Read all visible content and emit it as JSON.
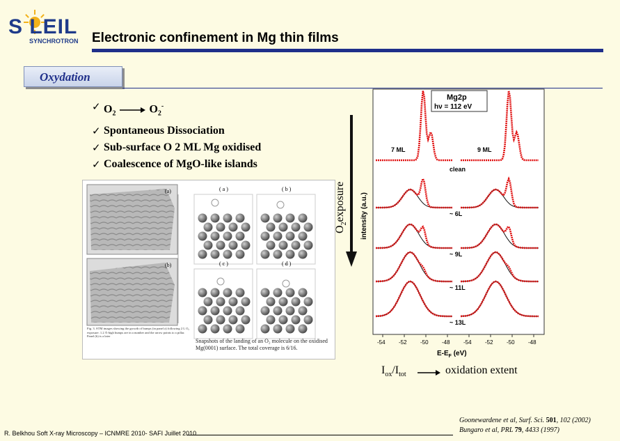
{
  "logo": {
    "word": "S LEIL",
    "sub": "SYNCHROTRON"
  },
  "title": "Electronic confinement in Mg thin films",
  "tab": "Oxydation",
  "bullets": {
    "b1_o2": "O",
    "b1_sub": "2",
    "b1_target": "O",
    "b1_target_sub": "2",
    "b1_target_sup": "-",
    "b2": "Spontaneous Dissociation",
    "b3": "Sub-surface O 2 ML Mg oxidised",
    "b4": "Coalescence of MgO-like islands"
  },
  "exposure_label": "O",
  "exposure_label_sub": "2",
  "exposure_label_rest": "exposure",
  "spectra": {
    "box_title": "Mg2p",
    "box_energy": "hν = 112 eV",
    "label_7ml": "7 ML",
    "label_9ml": "9 ML",
    "ylabel": "intensity (a.u.)",
    "xlabel": "E-E",
    "xlabel_sub": "F",
    "xlabel_unit": " (eV)",
    "ticks": [
      "-54",
      "-52",
      "-50",
      "-48",
      "-54",
      "-52",
      "-50",
      "-48"
    ],
    "exposures": [
      "clean",
      "~ 6L",
      "~ 9L",
      "~ 11L",
      "~ 13L"
    ]
  },
  "stm": {
    "label_a": "(a)",
    "label_b": "(b)",
    "snap_a": "( a )",
    "snap_b": "( b )",
    "snap_c": "( c )",
    "snap_d": "( d )",
    "caption1": "Fig. 3. STM images showing the growth of bumps (in panel a) following 2 L O₂ exposure. 1.2 Å-high bumps are in a number and the arrow points to a pillar. Panel (b) is a later",
    "caption2": "Snapshots of the landing of an O₂ molecule on the oxidised Mg(0001) surface. The total coverage is 6/16."
  },
  "ratio_I": "I",
  "ratio_ox": "ox",
  "ratio_slash": "/I",
  "ratio_tot": "tot",
  "extent": "oxidation extent",
  "footer": "R. Belkhou Soft X-ray Microscopy – ICNMRE 2010- SAFI Juillet 2010",
  "ref1": {
    "pre": "Goonewardene et al, Surf. Sci. ",
    "vol": "501",
    "post": ", 102 (2002)"
  },
  "ref2": {
    "pre": "Bungaro et al, PRL ",
    "vol": "79",
    "post": ", 4433 (1997)"
  },
  "colors": {
    "accent": "#1f2f8a",
    "spectrum": "#e01010",
    "background": "#fdfbe3"
  }
}
